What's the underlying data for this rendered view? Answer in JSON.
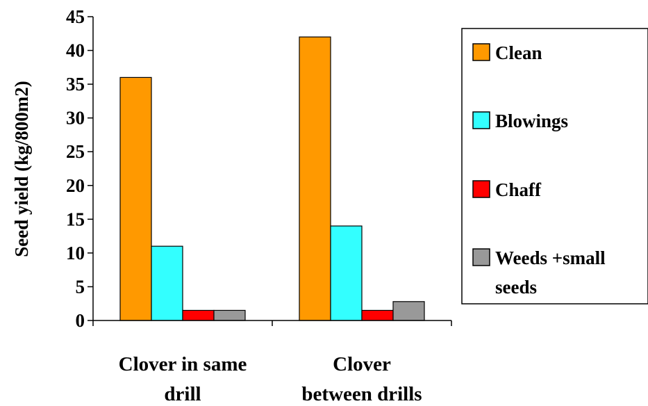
{
  "chart_data": {
    "type": "bar",
    "title": "",
    "xlabel": "",
    "ylabel": "Seed yield (kg/800m2)",
    "ylim": [
      0,
      45
    ],
    "yticks": [
      0,
      5,
      10,
      15,
      20,
      25,
      30,
      35,
      40,
      45
    ],
    "categories": [
      [
        "Clover in same",
        "drill"
      ],
      [
        "Clover",
        "between drills"
      ]
    ],
    "series": [
      {
        "name": "Clean",
        "color": "#FF9900",
        "values": [
          36,
          42
        ]
      },
      {
        "name": "Blowings",
        "color": "#33FFFF",
        "values": [
          11,
          14
        ]
      },
      {
        "name": "Chaff",
        "color": "#FF0000",
        "values": [
          1.5,
          1.5
        ]
      },
      {
        "name": "Weeds +small seeds",
        "color": "#999999",
        "values": [
          1.5,
          2.8
        ]
      }
    ],
    "legend": {
      "position": "right",
      "entries": [
        [
          "Clean"
        ],
        [
          "Blowings"
        ],
        [
          "Chaff"
        ],
        [
          "Weeds +small",
          "seeds"
        ]
      ]
    },
    "grid": false
  }
}
